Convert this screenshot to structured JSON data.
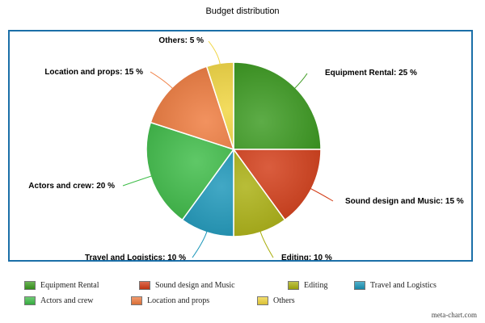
{
  "chart_data": {
    "type": "pie",
    "title": "Budget distribution",
    "slices": [
      {
        "name": "Equipment Rental",
        "value": 25,
        "label": "Equipment Rental: 25 %",
        "color": "#3a9a1e"
      },
      {
        "name": "Sound design and Music",
        "value": 15,
        "label": "Sound design and Music: 15 %",
        "color": "#d23a14"
      },
      {
        "name": "Editing",
        "value": 10,
        "label": "Editing: 10 %",
        "color": "#a9ae0c"
      },
      {
        "name": "Travel and Logistics",
        "value": 10,
        "label": "Travel and Logistics: 10 %",
        "color": "#1895b8"
      },
      {
        "name": "Actors and crew",
        "value": 20,
        "label": "Actors and crew: 20 %",
        "color": "#3cbc46"
      },
      {
        "name": "Location and props",
        "value": 15,
        "label": "Location and props: 15 %",
        "color": "#ef7a3c"
      },
      {
        "name": "Others",
        "value": 5,
        "label": "Others: 5 %",
        "color": "#f0d43c"
      }
    ],
    "legend_position": "bottom"
  },
  "watermark": "meta-chart.com"
}
